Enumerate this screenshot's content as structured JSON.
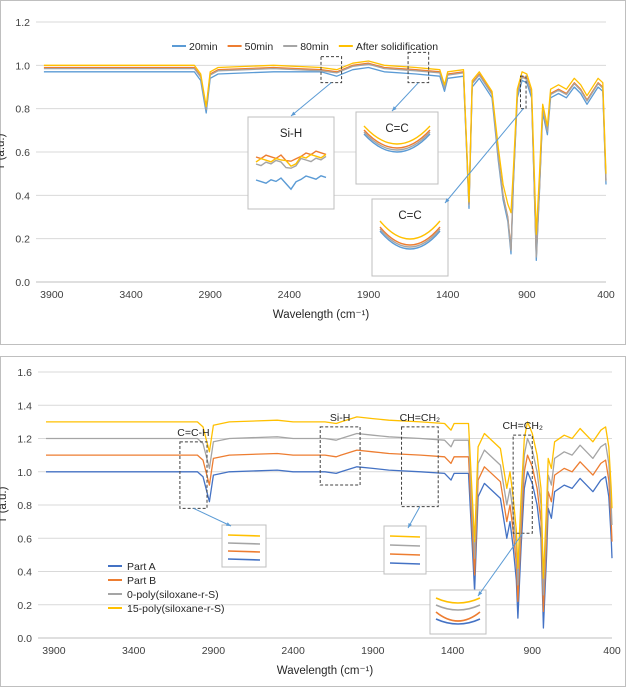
{
  "chart_data": [
    {
      "type": "line",
      "title": "",
      "xlabel": "Wavelength (cm⁻¹)",
      "ylabel": "T (a.u.)",
      "xlim": [
        4000,
        400
      ],
      "ylim": [
        0,
        1.2
      ],
      "x_ticks": [
        3900,
        3400,
        2900,
        2400,
        1900,
        1400,
        900,
        400
      ],
      "y_ticks": [
        "0.0",
        "0.2",
        "0.4",
        "0.6",
        "0.8",
        "1.0",
        "1.2"
      ],
      "grid": true,
      "legend": "top",
      "series": [
        {
          "name": "20min",
          "color": "#5b9bd5",
          "points": [
            [
              3950,
              0.97
            ],
            [
              3000,
              0.97
            ],
            [
              2960,
              0.93
            ],
            [
              2925,
              0.78
            ],
            [
              2900,
              0.94
            ],
            [
              2850,
              0.96
            ],
            [
              2500,
              0.97
            ],
            [
              2200,
              0.97
            ],
            [
              2100,
              0.95
            ],
            [
              2000,
              0.98
            ],
            [
              1900,
              0.99
            ],
            [
              1800,
              0.97
            ],
            [
              1600,
              0.96
            ],
            [
              1450,
              0.95
            ],
            [
              1420,
              0.88
            ],
            [
              1400,
              0.94
            ],
            [
              1300,
              0.95
            ],
            [
              1265,
              0.34
            ],
            [
              1245,
              0.9
            ],
            [
              1200,
              0.94
            ],
            [
              1120,
              0.85
            ],
            [
              1080,
              0.56
            ],
            [
              1050,
              0.38
            ],
            [
              1020,
              0.28
            ],
            [
              1000,
              0.13
            ],
            [
              985,
              0.45
            ],
            [
              960,
              0.85
            ],
            [
              930,
              0.93
            ],
            [
              900,
              0.92
            ],
            [
              870,
              0.85
            ],
            [
              840,
              0.1
            ],
            [
              820,
              0.42
            ],
            [
              800,
              0.78
            ],
            [
              770,
              0.68
            ],
            [
              750,
              0.85
            ],
            [
              700,
              0.87
            ],
            [
              650,
              0.85
            ],
            [
              600,
              0.9
            ],
            [
              560,
              0.87
            ],
            [
              520,
              0.82
            ],
            [
              450,
              0.9
            ],
            [
              420,
              0.88
            ],
            [
              405,
              0.55
            ],
            [
              400,
              0.45
            ]
          ]
        },
        {
          "name": "50min",
          "color": "#ed7d31",
          "points": [
            [
              3950,
              0.99
            ],
            [
              3000,
              0.99
            ],
            [
              2960,
              0.95
            ],
            [
              2925,
              0.8
            ],
            [
              2900,
              0.96
            ],
            [
              2850,
              0.98
            ],
            [
              2500,
              0.99
            ],
            [
              2200,
              0.98
            ],
            [
              2100,
              0.97
            ],
            [
              2000,
              1.0
            ],
            [
              1900,
              1.01
            ],
            [
              1800,
              0.99
            ],
            [
              1600,
              0.98
            ],
            [
              1450,
              0.97
            ],
            [
              1420,
              0.9
            ],
            [
              1400,
              0.96
            ],
            [
              1300,
              0.97
            ],
            [
              1265,
              0.36
            ],
            [
              1245,
              0.92
            ],
            [
              1200,
              0.96
            ],
            [
              1120,
              0.87
            ],
            [
              1080,
              0.58
            ],
            [
              1050,
              0.4
            ],
            [
              1020,
              0.3
            ],
            [
              1000,
              0.15
            ],
            [
              985,
              0.47
            ],
            [
              960,
              0.87
            ],
            [
              930,
              0.95
            ],
            [
              900,
              0.94
            ],
            [
              870,
              0.87
            ],
            [
              840,
              0.12
            ],
            [
              820,
              0.44
            ],
            [
              800,
              0.8
            ],
            [
              770,
              0.7
            ],
            [
              750,
              0.87
            ],
            [
              700,
              0.89
            ],
            [
              650,
              0.87
            ],
            [
              600,
              0.92
            ],
            [
              560,
              0.89
            ],
            [
              520,
              0.84
            ],
            [
              450,
              0.92
            ],
            [
              420,
              0.9
            ],
            [
              405,
              0.57
            ],
            [
              400,
              0.47
            ]
          ]
        },
        {
          "name": "80min",
          "color": "#a5a5a5",
          "points": [
            [
              3950,
              0.985
            ],
            [
              3000,
              0.985
            ],
            [
              2960,
              0.945
            ],
            [
              2925,
              0.795
            ],
            [
              2900,
              0.955
            ],
            [
              2850,
              0.975
            ],
            [
              2500,
              0.985
            ],
            [
              2200,
              0.975
            ],
            [
              2100,
              0.965
            ],
            [
              2000,
              0.995
            ],
            [
              1900,
              1.005
            ],
            [
              1800,
              0.985
            ],
            [
              1600,
              0.975
            ],
            [
              1450,
              0.965
            ],
            [
              1420,
              0.895
            ],
            [
              1400,
              0.955
            ],
            [
              1300,
              0.965
            ],
            [
              1265,
              0.355
            ],
            [
              1245,
              0.915
            ],
            [
              1200,
              0.955
            ],
            [
              1120,
              0.865
            ],
            [
              1080,
              0.575
            ],
            [
              1050,
              0.395
            ],
            [
              1020,
              0.295
            ],
            [
              1000,
              0.145
            ],
            [
              985,
              0.465
            ],
            [
              960,
              0.865
            ],
            [
              930,
              0.945
            ],
            [
              900,
              0.935
            ],
            [
              870,
              0.865
            ],
            [
              840,
              0.115
            ],
            [
              820,
              0.435
            ],
            [
              800,
              0.795
            ],
            [
              770,
              0.695
            ],
            [
              750,
              0.865
            ],
            [
              700,
              0.885
            ],
            [
              650,
              0.865
            ],
            [
              600,
              0.915
            ],
            [
              560,
              0.885
            ],
            [
              520,
              0.835
            ],
            [
              450,
              0.915
            ],
            [
              420,
              0.895
            ],
            [
              405,
              0.565
            ],
            [
              400,
              0.465
            ]
          ]
        },
        {
          "name": "After solidification",
          "color": "#ffc000",
          "points": [
            [
              3950,
              1.0
            ],
            [
              3000,
              1.0
            ],
            [
              2960,
              0.96
            ],
            [
              2925,
              0.81
            ],
            [
              2900,
              0.97
            ],
            [
              2850,
              0.99
            ],
            [
              2500,
              1.0
            ],
            [
              2200,
              0.99
            ],
            [
              2100,
              0.98
            ],
            [
              2000,
              1.01
            ],
            [
              1900,
              1.02
            ],
            [
              1800,
              1.0
            ],
            [
              1600,
              0.99
            ],
            [
              1450,
              0.98
            ],
            [
              1420,
              0.91
            ],
            [
              1400,
              0.97
            ],
            [
              1300,
              0.98
            ],
            [
              1265,
              0.37
            ],
            [
              1245,
              0.93
            ],
            [
              1200,
              0.97
            ],
            [
              1120,
              0.88
            ],
            [
              1080,
              0.62
            ],
            [
              1050,
              0.45
            ],
            [
              1020,
              0.36
            ],
            [
              1000,
              0.32
            ],
            [
              985,
              0.52
            ],
            [
              960,
              0.89
            ],
            [
              930,
              0.97
            ],
            [
              900,
              0.96
            ],
            [
              870,
              0.89
            ],
            [
              840,
              0.22
            ],
            [
              820,
              0.5
            ],
            [
              800,
              0.82
            ],
            [
              770,
              0.72
            ],
            [
              750,
              0.89
            ],
            [
              700,
              0.91
            ],
            [
              650,
              0.89
            ],
            [
              600,
              0.94
            ],
            [
              560,
              0.91
            ],
            [
              520,
              0.86
            ],
            [
              450,
              0.94
            ],
            [
              420,
              0.92
            ],
            [
              405,
              0.6
            ],
            [
              400,
              0.5
            ]
          ]
        }
      ],
      "highlights": [
        {
          "label": "Si-H",
          "x_range": [
            2200,
            2070
          ],
          "y_range": [
            0.92,
            1.04
          ]
        },
        {
          "label": "C=C",
          "x_range": [
            1650,
            1520
          ],
          "y_range": [
            0.92,
            1.06
          ]
        },
        {
          "label": "C=C",
          "x_range": [
            940,
            905
          ],
          "y_range": [
            0.8,
            0.95
          ]
        }
      ]
    },
    {
      "type": "line",
      "title": "",
      "xlabel": "Wavelength (cm⁻¹)",
      "ylabel": "T (a.u.)",
      "xlim": [
        4000,
        400
      ],
      "ylim": [
        0,
        1.6
      ],
      "x_ticks": [
        3900,
        3400,
        2900,
        2400,
        1900,
        1400,
        900,
        400
      ],
      "y_ticks": [
        "0.0",
        "0.2",
        "0.4",
        "0.6",
        "0.8",
        "1.0",
        "1.2",
        "1.4",
        "1.6"
      ],
      "grid": true,
      "legend": "bottom-left",
      "series": [
        {
          "name": "Part A",
          "color": "#4472c4",
          "offset": 0.0
        },
        {
          "name": "Part B",
          "color": "#ed7d31",
          "offset": 0.1
        },
        {
          "name": "0-poly(siloxane-r-S)",
          "color": "#a5a5a5",
          "offset": 0.2
        },
        {
          "name": "15-poly(siloxane-r-S)",
          "color": "#ffc000",
          "offset": 0.3
        }
      ],
      "base_points": [
        [
          3950,
          1.0
        ],
        [
          3000,
          1.0
        ],
        [
          2965,
          0.97
        ],
        [
          2925,
          0.82
        ],
        [
          2900,
          0.98
        ],
        [
          2800,
          1.0
        ],
        [
          2500,
          1.01
        ],
        [
          2400,
          1.0
        ],
        [
          2200,
          1.0
        ],
        [
          2130,
          0.99
        ],
        [
          2100,
          1.0
        ],
        [
          2000,
          1.03
        ],
        [
          1900,
          1.02
        ],
        [
          1800,
          1.01
        ],
        [
          1600,
          1.0
        ],
        [
          1450,
          0.99
        ],
        [
          1410,
          0.95
        ],
        [
          1390,
          0.99
        ],
        [
          1300,
          0.99
        ],
        [
          1262,
          0.28
        ],
        [
          1240,
          0.85
        ],
        [
          1200,
          0.93
        ],
        [
          1100,
          0.84
        ],
        [
          1060,
          0.6
        ],
        [
          1040,
          0.7
        ],
        [
          1020,
          0.55
        ],
        [
          1000,
          0.35
        ],
        [
          990,
          0.12
        ],
        [
          970,
          0.55
        ],
        [
          950,
          0.9
        ],
        [
          930,
          1.0
        ],
        [
          900,
          0.93
        ],
        [
          870,
          0.8
        ],
        [
          845,
          0.6
        ],
        [
          830,
          0.06
        ],
        [
          810,
          0.5
        ],
        [
          800,
          0.78
        ],
        [
          780,
          0.72
        ],
        [
          760,
          0.88
        ],
        [
          700,
          0.92
        ],
        [
          650,
          0.9
        ],
        [
          600,
          0.96
        ],
        [
          560,
          0.92
        ],
        [
          520,
          0.88
        ],
        [
          470,
          0.95
        ],
        [
          440,
          0.97
        ],
        [
          420,
          0.85
        ],
        [
          405,
          0.6
        ],
        [
          400,
          0.48
        ]
      ],
      "highlights": [
        {
          "label": "C=C-H",
          "x_range": [
            3110,
            2940
          ],
          "y_range": [
            0.78,
            1.18
          ]
        },
        {
          "label": "Si-H",
          "x_range": [
            2230,
            1980
          ],
          "y_range": [
            0.92,
            1.27
          ]
        },
        {
          "label": "CH=CH₂",
          "x_range": [
            1720,
            1490
          ],
          "y_range": [
            0.79,
            1.27
          ]
        },
        {
          "label": "CH=CH₂",
          "x_range": [
            1020,
            900
          ],
          "y_range": [
            0.63,
            1.22
          ]
        }
      ]
    }
  ]
}
